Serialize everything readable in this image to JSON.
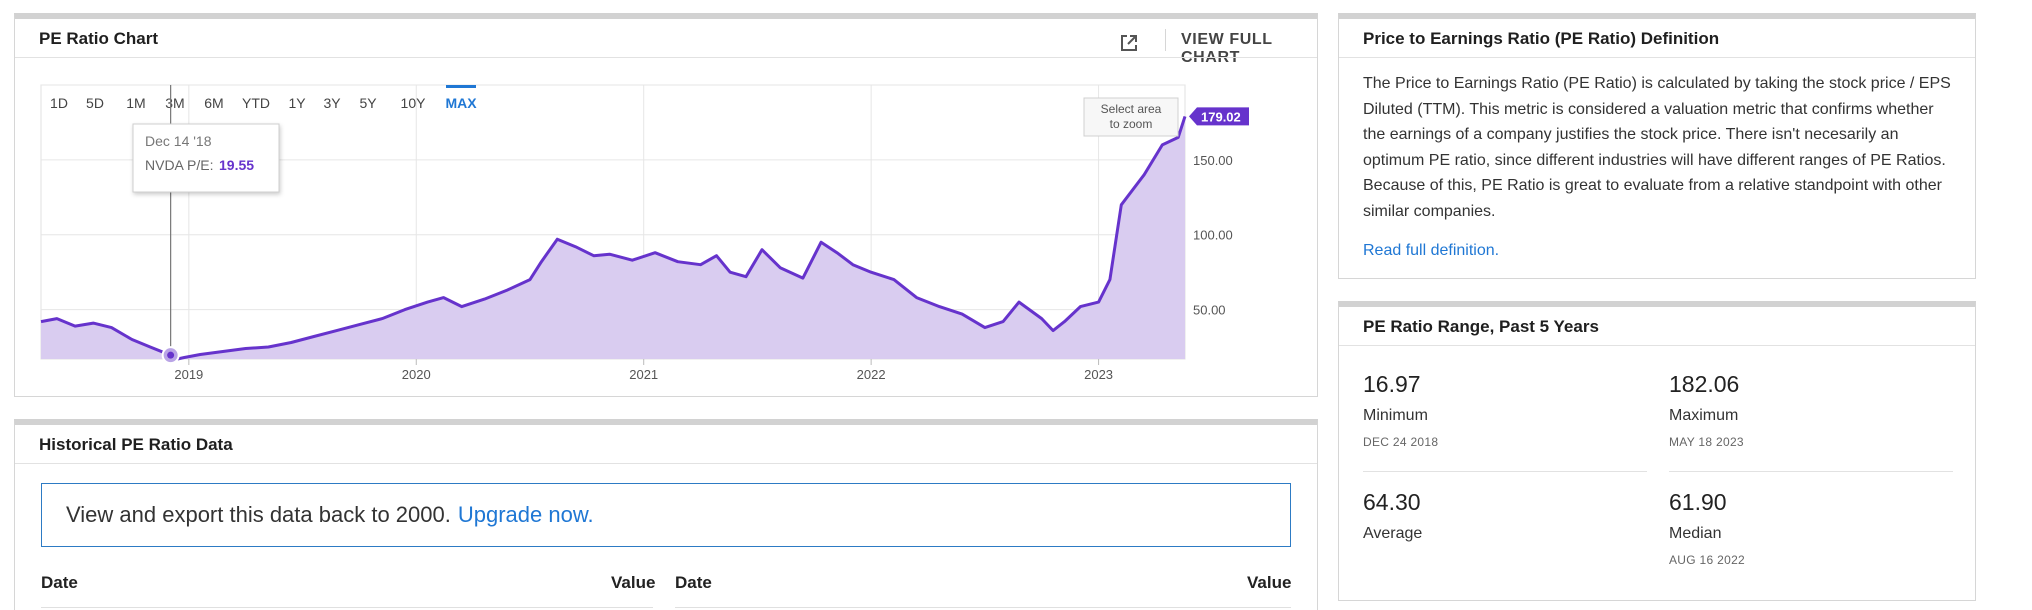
{
  "chart_panel": {
    "title": "PE Ratio Chart",
    "view_full_label": "VIEW FULL CHART",
    "expand_icon": "external-link-icon",
    "zoom_hint_line1": "Select area",
    "zoom_hint_line2": "to zoom",
    "range_buttons": [
      "1D",
      "5D",
      "1M",
      "3M",
      "6M",
      "YTD",
      "1Y",
      "3Y",
      "5Y",
      "10Y",
      "MAX"
    ],
    "active_range": "MAX",
    "tooltip": {
      "date": "Dec 14 '18",
      "label": "NVDA P/E:",
      "value": "19.55"
    },
    "accent_color": "#6633cc",
    "fill_color": "#d9ccf0"
  },
  "chart_data": {
    "type": "area",
    "series": [
      {
        "x": [
          2018.35,
          2018.42,
          2018.5,
          2018.58,
          2018.66,
          2018.75,
          2018.83,
          2018.92,
          2018.95,
          2018.98,
          2019.05,
          2019.15,
          2019.25,
          2019.35,
          2019.45,
          2019.55,
          2019.65,
          2019.75,
          2019.85,
          2019.95,
          2020.05,
          2020.12,
          2020.2,
          2020.3,
          2020.4,
          2020.5,
          2020.55,
          2020.62,
          2020.7,
          2020.78,
          2020.85,
          2020.95,
          2021.05,
          2021.15,
          2021.25,
          2021.32,
          2021.38,
          2021.45,
          2021.52,
          2021.6,
          2021.7,
          2021.78,
          2021.85,
          2021.92,
          2022.0,
          2022.1,
          2022.2,
          2022.3,
          2022.4,
          2022.5,
          2022.58,
          2022.65,
          2022.75,
          2022.8,
          2022.85,
          2022.92,
          2023.0,
          2023.05,
          2023.1,
          2023.2,
          2023.28,
          2023.35,
          2023.38
        ],
        "y": [
          42,
          44,
          39,
          41,
          38,
          30,
          25,
          19.55,
          16.97,
          18,
          20,
          22,
          24,
          25,
          28,
          32,
          36,
          40,
          44,
          50,
          55,
          58,
          52,
          57,
          63,
          70,
          82,
          97,
          92,
          86,
          87,
          83,
          88,
          82,
          80,
          86,
          75,
          72,
          90,
          78,
          71,
          95,
          88,
          80,
          75,
          70,
          58,
          52,
          47,
          38,
          42,
          55,
          44,
          36,
          42,
          52,
          55,
          70,
          120,
          140,
          160,
          165,
          179.02
        ]
      }
    ],
    "y_ticks": [
      "50.00",
      "100.00",
      "150.00"
    ],
    "x_ticks": [
      "2019",
      "2020",
      "2021",
      "2022",
      "2023"
    ],
    "last_value_label": "179.02",
    "ylim": [
      17,
      200
    ],
    "xlim": [
      2018.35,
      2023.38
    ],
    "grid": true
  },
  "historical_panel": {
    "title": "Historical PE Ratio Data",
    "upgrade_text": "View and export this data back to 2000.",
    "upgrade_link": "Upgrade now.",
    "columns": [
      {
        "date": "Date",
        "value": "Value"
      },
      {
        "date": "Date",
        "value": "Value"
      }
    ]
  },
  "definition_panel": {
    "title": "Price to Earnings Ratio (PE Ratio) Definition",
    "text": "The Price to Earnings Ratio (PE Ratio) is calculated by taking the stock price / EPS Diluted (TTM). This metric is considered a valuation metric that confirms whether the earnings of a company justifies the stock price. There isn't necesarily an optimum PE ratio, since different industries will have different ranges of PE Ratios. Because of this, PE Ratio is great to evaluate from a relative standpoint with other similar companies.",
    "link": "Read full definition."
  },
  "range_panel": {
    "title": "PE Ratio Range, Past 5 Years",
    "minimum": {
      "value": "16.97",
      "label": "Minimum",
      "date": "DEC 24 2018"
    },
    "maximum": {
      "value": "182.06",
      "label": "Maximum",
      "date": "MAY 18 2023"
    },
    "average": {
      "value": "64.30",
      "label": "Average"
    },
    "median": {
      "value": "61.90",
      "label": "Median",
      "date": "AUG 16 2022"
    }
  }
}
